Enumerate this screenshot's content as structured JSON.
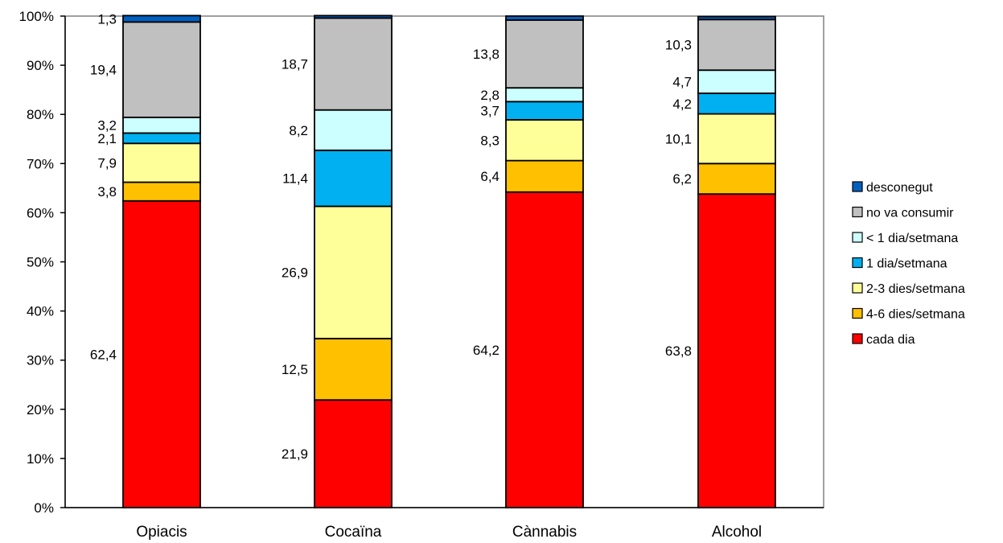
{
  "chart_data": {
    "type": "bar",
    "stacked": true,
    "percent": true,
    "categories": [
      "Opiacis",
      "Cocaïna",
      "Cànnabis",
      "Alcohol"
    ],
    "y_ticks": [
      "0%",
      "10%",
      "20%",
      "30%",
      "40%",
      "50%",
      "60%",
      "70%",
      "80%",
      "90%",
      "100%"
    ],
    "ylim": [
      0,
      100
    ],
    "legend_position": "right",
    "grid": false,
    "series": [
      {
        "name": "cada dia",
        "color": "#ff0000",
        "values": [
          62.4,
          21.9,
          64.2,
          63.8
        ],
        "labels": [
          "62,4",
          "21,9",
          "64,2",
          "63,8"
        ]
      },
      {
        "name": "4-6 dies/setmana",
        "color": "#ffc000",
        "values": [
          3.8,
          12.5,
          6.4,
          6.2
        ],
        "labels": [
          "3,8",
          "12,5",
          "6,4",
          "6,2"
        ]
      },
      {
        "name": "2-3 dies/setmana",
        "color": "#ffff99",
        "values": [
          7.9,
          26.9,
          8.3,
          10.1
        ],
        "labels": [
          "7,9",
          "26,9",
          "8,3",
          "10,1"
        ]
      },
      {
        "name": "1 dia/setmana",
        "color": "#00b0f0",
        "values": [
          2.1,
          11.4,
          3.7,
          4.2
        ],
        "labels": [
          "2,1",
          "11,4",
          "3,7",
          "4,2"
        ]
      },
      {
        "name": "< 1 dia/setmana",
        "color": "#ccffff",
        "values": [
          3.2,
          8.2,
          2.8,
          4.7
        ],
        "labels": [
          "3,2",
          "8,2",
          "2,8",
          "4,7"
        ]
      },
      {
        "name": "no va consumir",
        "color": "#c0c0c0",
        "values": [
          19.4,
          18.7,
          13.8,
          10.3
        ],
        "labels": [
          "19,4",
          "18,7",
          "13,8",
          "10,3"
        ]
      },
      {
        "name": "desconegut",
        "color": "#0060c0",
        "values": [
          1.3,
          0.5,
          0.8,
          0.6
        ],
        "labels": [
          "1,3",
          "",
          "",
          ""
        ]
      }
    ]
  }
}
